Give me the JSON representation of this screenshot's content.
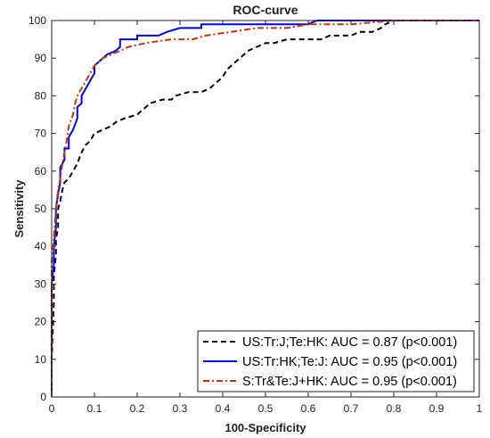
{
  "chart_data": {
    "type": "line",
    "title": "ROC-curve",
    "xlabel": "100-Specificity",
    "ylabel": "Sensitivity",
    "xlim": [
      0,
      1
    ],
    "ylim": [
      0,
      100
    ],
    "x_ticks": [
      "0",
      "0.1",
      "0.2",
      "0.3",
      "0.4",
      "0.5",
      "0.6",
      "0.7",
      "0.8",
      "0.9",
      "1"
    ],
    "y_ticks": [
      "0",
      "10",
      "20",
      "30",
      "40",
      "50",
      "60",
      "70",
      "80",
      "90",
      "100"
    ],
    "grid": false,
    "legend_position": "bottom-right",
    "series": [
      {
        "name": "US:Tr:J;Te:HK: AUC = 0.87 (p<0.001)",
        "color": "#000000",
        "style": "dashed",
        "points": [
          [
            0,
            0
          ],
          [
            0,
            10
          ],
          [
            0.005,
            25
          ],
          [
            0.005,
            32
          ],
          [
            0.01,
            38
          ],
          [
            0.01,
            42
          ],
          [
            0.015,
            45
          ],
          [
            0.015,
            50
          ],
          [
            0.02,
            52
          ],
          [
            0.025,
            55
          ],
          [
            0.03,
            57
          ],
          [
            0.04,
            58
          ],
          [
            0.05,
            60
          ],
          [
            0.06,
            62
          ],
          [
            0.07,
            65
          ],
          [
            0.08,
            67
          ],
          [
            0.09,
            68
          ],
          [
            0.1,
            70
          ],
          [
            0.12,
            71
          ],
          [
            0.14,
            72
          ],
          [
            0.15,
            73
          ],
          [
            0.17,
            74
          ],
          [
            0.2,
            75
          ],
          [
            0.21,
            76
          ],
          [
            0.22,
            77
          ],
          [
            0.23,
            78
          ],
          [
            0.26,
            79
          ],
          [
            0.28,
            79
          ],
          [
            0.29,
            80
          ],
          [
            0.32,
            81
          ],
          [
            0.35,
            81
          ],
          [
            0.37,
            82
          ],
          [
            0.38,
            83
          ],
          [
            0.39,
            84
          ],
          [
            0.4,
            85
          ],
          [
            0.41,
            87
          ],
          [
            0.42,
            88
          ],
          [
            0.43,
            89
          ],
          [
            0.44,
            90
          ],
          [
            0.45,
            91
          ],
          [
            0.46,
            92
          ],
          [
            0.48,
            93
          ],
          [
            0.5,
            94
          ],
          [
            0.52,
            94
          ],
          [
            0.55,
            95
          ],
          [
            0.6,
            95
          ],
          [
            0.63,
            95
          ],
          [
            0.65,
            96
          ],
          [
            0.7,
            96
          ],
          [
            0.72,
            97
          ],
          [
            0.75,
            97
          ],
          [
            0.77,
            98
          ],
          [
            0.78,
            99
          ],
          [
            0.8,
            100
          ],
          [
            1,
            100
          ]
        ]
      },
      {
        "name": "US:Tr:HK;Te:J: AUC = 0.95 (p<0.001)",
        "color": "#0000ff",
        "style": "solid",
        "points": [
          [
            0,
            0
          ],
          [
            0,
            30
          ],
          [
            0.005,
            35
          ],
          [
            0.005,
            40
          ],
          [
            0.01,
            45
          ],
          [
            0.01,
            50
          ],
          [
            0.015,
            54
          ],
          [
            0.02,
            57
          ],
          [
            0.02,
            61
          ],
          [
            0.03,
            63
          ],
          [
            0.03,
            66
          ],
          [
            0.04,
            66
          ],
          [
            0.04,
            69
          ],
          [
            0.05,
            71
          ],
          [
            0.06,
            74
          ],
          [
            0.06,
            77
          ],
          [
            0.07,
            78
          ],
          [
            0.07,
            80
          ],
          [
            0.08,
            82
          ],
          [
            0.09,
            84
          ],
          [
            0.1,
            86
          ],
          [
            0.1,
            88
          ],
          [
            0.11,
            89
          ],
          [
            0.12,
            90
          ],
          [
            0.13,
            91
          ],
          [
            0.15,
            92
          ],
          [
            0.16,
            93
          ],
          [
            0.16,
            95
          ],
          [
            0.2,
            95
          ],
          [
            0.2,
            96
          ],
          [
            0.25,
            96
          ],
          [
            0.27,
            97
          ],
          [
            0.3,
            98
          ],
          [
            0.35,
            98
          ],
          [
            0.35,
            99
          ],
          [
            0.45,
            99
          ],
          [
            0.5,
            99
          ],
          [
            0.6,
            99
          ],
          [
            0.62,
            100
          ],
          [
            0.7,
            100
          ],
          [
            1,
            100
          ]
        ]
      },
      {
        "name": "S:Tr&Te:J+HK: AUC = 0.95 (p<0.001)",
        "color": "#cc3300",
        "style": "dashdot",
        "points": [
          [
            0,
            0
          ],
          [
            0,
            36
          ],
          [
            0.005,
            42
          ],
          [
            0.01,
            50
          ],
          [
            0.015,
            55
          ],
          [
            0.02,
            58
          ],
          [
            0.025,
            62
          ],
          [
            0.03,
            65
          ],
          [
            0.035,
            68
          ],
          [
            0.04,
            72
          ],
          [
            0.05,
            75
          ],
          [
            0.055,
            78
          ],
          [
            0.06,
            80
          ],
          [
            0.07,
            82
          ],
          [
            0.08,
            84
          ],
          [
            0.09,
            86
          ],
          [
            0.1,
            88
          ],
          [
            0.12,
            90
          ],
          [
            0.14,
            91
          ],
          [
            0.16,
            92
          ],
          [
            0.18,
            93
          ],
          [
            0.22,
            94
          ],
          [
            0.28,
            95
          ],
          [
            0.33,
            95
          ],
          [
            0.36,
            96
          ],
          [
            0.42,
            97
          ],
          [
            0.48,
            98
          ],
          [
            0.55,
            98
          ],
          [
            0.6,
            99
          ],
          [
            0.7,
            99
          ],
          [
            0.8,
            100
          ],
          [
            1,
            100
          ]
        ]
      }
    ]
  }
}
